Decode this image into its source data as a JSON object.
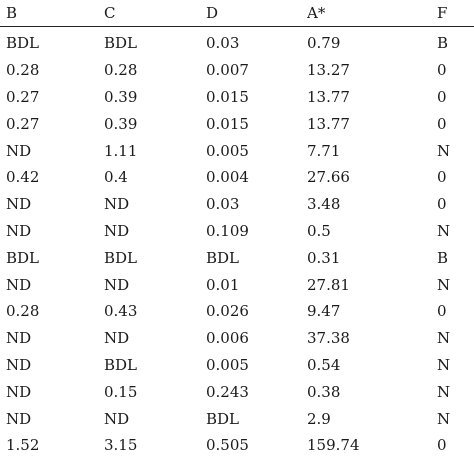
{
  "table": {
    "headers": [
      "B",
      "C",
      "D",
      "A*",
      "F"
    ],
    "rows": [
      [
        "BDL",
        "BDL",
        "0.03",
        "0.79",
        "B"
      ],
      [
        "0.28",
        "0.28",
        "0.007",
        "13.27",
        "0"
      ],
      [
        "0.27",
        "0.39",
        "0.015",
        "13.77",
        "0"
      ],
      [
        "0.27",
        "0.39",
        "0.015",
        "13.77",
        "0"
      ],
      [
        "ND",
        "1.11",
        "0.005",
        "7.71",
        "N"
      ],
      [
        "0.42",
        "0.4",
        "0.004",
        "27.66",
        "0"
      ],
      [
        "ND",
        "ND",
        "0.03",
        "3.48",
        "0"
      ],
      [
        "ND",
        "ND",
        "0.109",
        "0.5",
        "N"
      ],
      [
        "BDL",
        "BDL",
        "BDL",
        "0.31",
        "B"
      ],
      [
        "ND",
        "ND",
        "0.01",
        "27.81",
        "N"
      ],
      [
        "0.28",
        "0.43",
        "0.026",
        "9.47",
        "0"
      ],
      [
        "ND",
        "ND",
        "0.006",
        "37.38",
        "N"
      ],
      [
        "ND",
        "BDL",
        "0.005",
        "0.54",
        "N"
      ],
      [
        "ND",
        "0.15",
        "0.243",
        "0.38",
        "N"
      ],
      [
        "ND",
        "ND",
        "BDL",
        "2.9",
        "N"
      ],
      [
        "1.52",
        "3.15",
        "0.505",
        "159.74",
        "0"
      ]
    ]
  }
}
